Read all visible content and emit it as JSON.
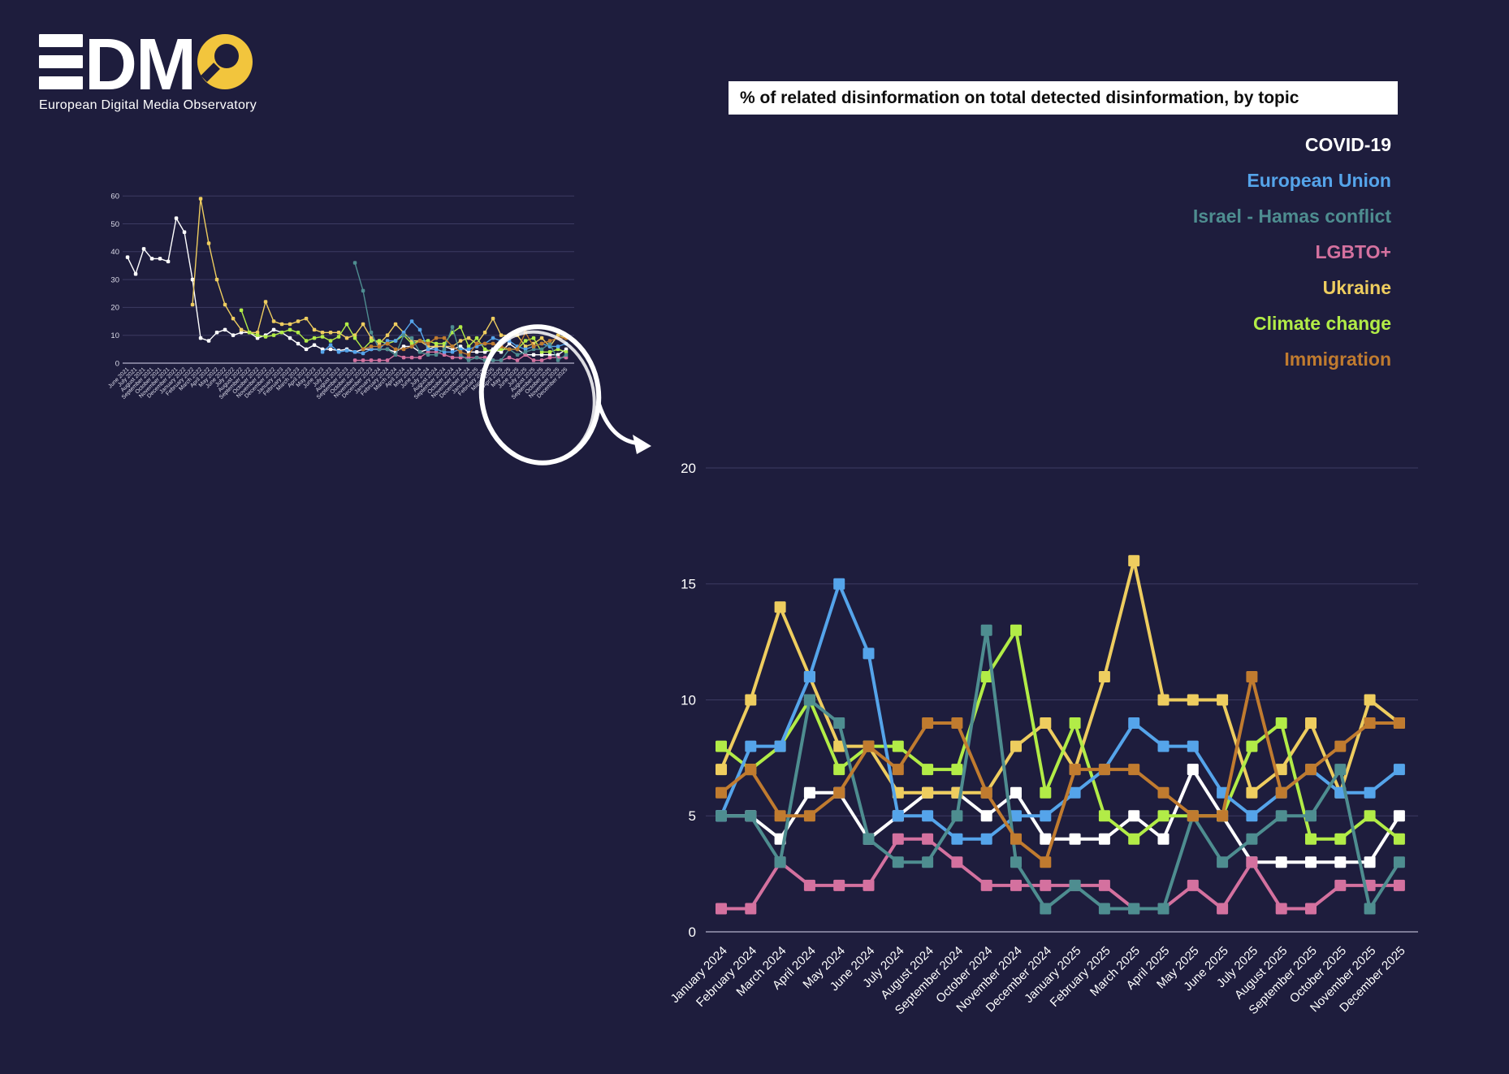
{
  "background": "#1e1d3d",
  "logo": {
    "dm": "DM",
    "tagline": "European Digital Media Observatory",
    "bar_color": "#ffffff",
    "o_color": "#f2c53d"
  },
  "title": {
    "text": "% of related disinformation on total detected disinformation, by topic",
    "bg": "#ffffff",
    "color": "#0d0d0d"
  },
  "colors": {
    "grid": "#3c3b62",
    "zero_axis": "#9b99b4",
    "tick_label": "#ffffff",
    "overview_tick_label": "#dddcea",
    "annotation": "#ffffff"
  },
  "legend": {
    "items": [
      {
        "label": "COVID-19",
        "color": "#ffffff"
      },
      {
        "label": "European Union",
        "color": "#55a4ea"
      },
      {
        "label": "Israel - Hamas conflict",
        "color": "#4e8d90"
      },
      {
        "label": "LGBTO+",
        "color": "#d4719f"
      },
      {
        "label": "Ukraine",
        "color": "#eecd5f"
      },
      {
        "label": "Climate change",
        "color": "#b2ec47"
      },
      {
        "label": "Immigration",
        "color": "#c07b2f"
      }
    ]
  },
  "chart_data": {
    "type": "line",
    "title": "% of related disinformation on total detected disinformation, by topic",
    "xlabel": "",
    "ylabel": "",
    "ylim": [
      0,
      20
    ],
    "yticks": [
      0,
      5,
      10,
      15,
      20
    ],
    "grid": true,
    "legend_position": "top-right",
    "x": [
      "January 2024",
      "February 2024",
      "March 2024",
      "April 2024",
      "May 2024",
      "June 2024",
      "July 2024",
      "August 2024",
      "September 2024",
      "October 2024",
      "November 2024",
      "December 2024",
      "January 2025",
      "February 2025",
      "March 2025",
      "April 2025",
      "May 2025",
      "June 2025",
      "July 2025",
      "August 2025",
      "September 2025",
      "October 2025",
      "November 2025",
      "December 2025"
    ],
    "series": [
      {
        "name": "COVID-19",
        "color": "#ffffff",
        "values": [
          5,
          5,
          4,
          6,
          6,
          4,
          5,
          6,
          6,
          5,
          6,
          4,
          4,
          4,
          5,
          4,
          7,
          5,
          3,
          3,
          3,
          3,
          3,
          5
        ]
      },
      {
        "name": "European Union",
        "color": "#55a4ea",
        "values": [
          5,
          8,
          8,
          11,
          15,
          12,
          5,
          5,
          4,
          4,
          5,
          5,
          6,
          7,
          9,
          8,
          8,
          6,
          5,
          6,
          7,
          6,
          6,
          7
        ]
      },
      {
        "name": "Israel - Hamas conflict",
        "color": "#4e8d90",
        "values": [
          5,
          5,
          3,
          10,
          9,
          4,
          3,
          3,
          5,
          13,
          3,
          1,
          2,
          1,
          1,
          1,
          5,
          3,
          4,
          5,
          5,
          7,
          1,
          3
        ]
      },
      {
        "name": "LGBTO+",
        "color": "#d4719f",
        "values": [
          1,
          1,
          3,
          2,
          2,
          2,
          4,
          4,
          3,
          2,
          2,
          2,
          2,
          2,
          1,
          1,
          2,
          1,
          3,
          1,
          1,
          2,
          2,
          2
        ]
      },
      {
        "name": "Ukraine",
        "color": "#eecd5f",
        "values": [
          7,
          10,
          14,
          11,
          8,
          8,
          6,
          6,
          6,
          6,
          8,
          9,
          7,
          11,
          16,
          10,
          10,
          10,
          6,
          7,
          9,
          6,
          10,
          9
        ]
      },
      {
        "name": "Climate change",
        "color": "#b2ec47",
        "values": [
          8,
          7,
          8,
          10,
          7,
          8,
          8,
          7,
          7,
          11,
          13,
          6,
          9,
          5,
          4,
          5,
          5,
          5,
          8,
          9,
          4,
          4,
          5,
          4
        ]
      },
      {
        "name": "Immigration",
        "color": "#c07b2f",
        "values": [
          6,
          7,
          5,
          5,
          6,
          8,
          7,
          9,
          9,
          6,
          4,
          3,
          7,
          7,
          7,
          6,
          5,
          5,
          11,
          6,
          7,
          8,
          9,
          9
        ]
      }
    ]
  },
  "overview_chart": {
    "type": "line",
    "ylim": [
      0,
      60
    ],
    "yticks": [
      0,
      10,
      20,
      30,
      40,
      50,
      60
    ],
    "grid": true,
    "x": [
      "June 2021",
      "July 2021",
      "August 2021",
      "September 2021",
      "October 2021",
      "November 2021",
      "December 2021",
      "January 2022",
      "February 2022",
      "March 2022",
      "April 2022",
      "May 2022",
      "June 2022",
      "July 2022",
      "August 2022",
      "September 2022",
      "October 2022",
      "November 2022",
      "December 2022",
      "January 2023",
      "February 2023",
      "March 2023",
      "April 2023",
      "May 2023",
      "June 2023",
      "July 2023",
      "August 2023",
      "September 2023",
      "October 2023",
      "November 2023",
      "December 2023",
      "January 2024",
      "February 2024",
      "March 2024",
      "April 2024",
      "May 2024",
      "June 2024",
      "July 2024",
      "August 2024",
      "September 2024",
      "October 2024",
      "November 2024",
      "December 2024",
      "January 2025",
      "February 2025",
      "March 2025",
      "April 2025",
      "May 2025",
      "June 2025",
      "July 2025",
      "August 2025",
      "September 2025",
      "October 2025",
      "November 2025",
      "December 2025"
    ],
    "series": [
      {
        "name": "COVID-19",
        "color": "#ffffff",
        "values": [
          38,
          32,
          41,
          37.5,
          37.5,
          36.5,
          52,
          47,
          30,
          9,
          8,
          11,
          12,
          10,
          11,
          11,
          9,
          10,
          12,
          11,
          9,
          7,
          5,
          6.5,
          5,
          5,
          4.5,
          5,
          4,
          5,
          5,
          5,
          5,
          4,
          6,
          6,
          4,
          5,
          6,
          6,
          5,
          6,
          4,
          4,
          4,
          5,
          4,
          7,
          5,
          3,
          3,
          3,
          3,
          3,
          5
        ]
      },
      {
        "name": "European Union",
        "color": "#55a4ea",
        "values": [
          null,
          null,
          null,
          null,
          null,
          null,
          null,
          null,
          null,
          null,
          null,
          null,
          null,
          null,
          null,
          null,
          null,
          null,
          null,
          null,
          null,
          null,
          null,
          null,
          4,
          6.5,
          4,
          4.5,
          4,
          3.5,
          5,
          5,
          8,
          8,
          11,
          15,
          12,
          5,
          5,
          4,
          4,
          5,
          5,
          6,
          7,
          9,
          8,
          8,
          6,
          5,
          6,
          7,
          6,
          6,
          7
        ]
      },
      {
        "name": "Israel - Hamas conflict",
        "color": "#4e8d90",
        "values": [
          null,
          null,
          null,
          null,
          null,
          null,
          null,
          null,
          null,
          null,
          null,
          null,
          null,
          null,
          null,
          null,
          null,
          null,
          null,
          null,
          null,
          null,
          null,
          null,
          null,
          null,
          null,
          null,
          36,
          26,
          11,
          5,
          5,
          3,
          10,
          9,
          4,
          3,
          3,
          5,
          13,
          3,
          1,
          2,
          1,
          1,
          1,
          5,
          3,
          4,
          5,
          5,
          7,
          1,
          3
        ]
      },
      {
        "name": "LGBTO+",
        "color": "#d4719f",
        "values": [
          null,
          null,
          null,
          null,
          null,
          null,
          null,
          null,
          null,
          null,
          null,
          null,
          null,
          null,
          null,
          null,
          null,
          null,
          null,
          null,
          null,
          null,
          null,
          null,
          null,
          null,
          null,
          null,
          1,
          1,
          1,
          1,
          1,
          3,
          2,
          2,
          2,
          4,
          4,
          3,
          2,
          2,
          2,
          2,
          2,
          1,
          1,
          2,
          1,
          3,
          1,
          1,
          2,
          2,
          2
        ]
      },
      {
        "name": "Ukraine",
        "color": "#eecd5f",
        "values": [
          null,
          null,
          null,
          null,
          null,
          null,
          null,
          null,
          21,
          59,
          43,
          30,
          21,
          16,
          12,
          11,
          11,
          22,
          15,
          14,
          14,
          15,
          16,
          12,
          11,
          11,
          11,
          9,
          10,
          14,
          9,
          7,
          10,
          14,
          11,
          8,
          8,
          6,
          6,
          6,
          6,
          8,
          9,
          7,
          11,
          16,
          10,
          10,
          10,
          6,
          7,
          9,
          6,
          10,
          9
        ]
      },
      {
        "name": "Climate change",
        "color": "#b2ec47",
        "values": [
          null,
          null,
          null,
          null,
          null,
          null,
          null,
          null,
          null,
          null,
          null,
          null,
          null,
          null,
          19,
          11,
          10,
          9.5,
          10,
          11,
          12,
          11,
          8,
          9,
          9.5,
          8,
          9.5,
          14,
          9,
          5,
          8,
          8,
          7,
          8,
          10,
          7,
          8,
          8,
          7,
          7,
          11,
          13,
          6,
          9,
          5,
          4,
          5,
          5,
          5,
          8,
          9,
          4,
          4,
          5,
          4
        ]
      },
      {
        "name": "Immigration",
        "color": "#c07b2f",
        "values": [
          null,
          null,
          null,
          null,
          null,
          null,
          null,
          null,
          null,
          null,
          null,
          null,
          null,
          null,
          null,
          null,
          null,
          null,
          null,
          null,
          null,
          null,
          null,
          null,
          null,
          null,
          null,
          null,
          null,
          5,
          6,
          6,
          7,
          5,
          5,
          6,
          8,
          7,
          9,
          9,
          6,
          4,
          3,
          7,
          7,
          7,
          6,
          5,
          5,
          11,
          6,
          7,
          8,
          9,
          9
        ]
      }
    ]
  },
  "annotation": {
    "shape": "hand-drawn circle with arrow",
    "meaning": "circled months January 2024 - December 2025 enlarged below"
  }
}
